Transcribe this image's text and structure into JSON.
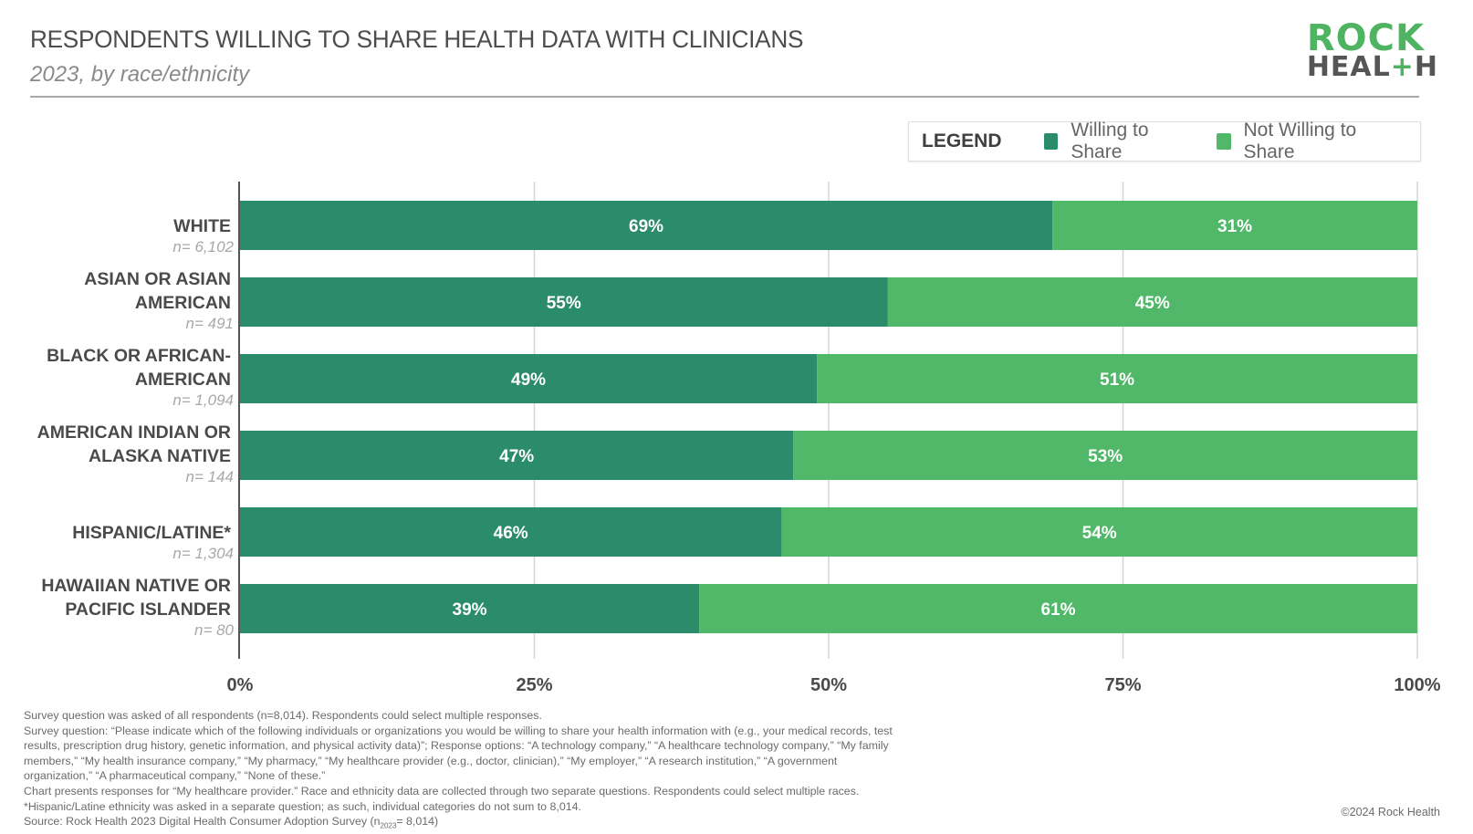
{
  "header": {
    "title": "RESPONDENTS WILLING TO SHARE HEALTH DATA WITH CLINICIANS",
    "subtitle": "2023, by race/ethnicity"
  },
  "logo": {
    "line1": "ROCK",
    "line2_pre": "HEAL",
    "line2_plus": "+",
    "line2_post": "H"
  },
  "legend": {
    "title": "LEGEND",
    "items": [
      {
        "label": "Willing to Share",
        "color": "#2b8c6b"
      },
      {
        "label": "Not Willing to Share",
        "color": "#50b868"
      }
    ]
  },
  "chart_data": {
    "type": "bar",
    "orientation": "horizontal",
    "stacked": true,
    "title": "RESPONDENTS WILLING TO SHARE HEALTH DATA WITH CLINICIANS",
    "subtitle": "2023, by race/ethnicity",
    "xlabel": "",
    "ylabel": "",
    "xlim": [
      0,
      100
    ],
    "x_ticks": [
      "0%",
      "25%",
      "50%",
      "75%",
      "100%"
    ],
    "x_tick_values": [
      0,
      25,
      50,
      75,
      100
    ],
    "grid": true,
    "legend_position": "top-right",
    "categories": [
      {
        "lines": [
          "WHITE"
        ],
        "n": "n= 6,102"
      },
      {
        "lines": [
          "ASIAN OR ASIAN",
          "AMERICAN"
        ],
        "n": "n= 491"
      },
      {
        "lines": [
          "BLACK OR AFRICAN-",
          "AMERICAN"
        ],
        "n": "n= 1,094"
      },
      {
        "lines": [
          "AMERICAN INDIAN OR",
          "ALASKA NATIVE"
        ],
        "n": "n= 144"
      },
      {
        "lines": [
          "HISPANIC/LATINE*"
        ],
        "n": "n= 1,304"
      },
      {
        "lines": [
          "HAWAIIAN NATIVE OR",
          "PACIFIC ISLANDER"
        ],
        "n": "n= 80"
      }
    ],
    "series": [
      {
        "name": "Willing to Share",
        "color": "#2b8c6b",
        "values": [
          69,
          55,
          49,
          47,
          46,
          39
        ],
        "labels": [
          "69%",
          "55%",
          "49%",
          "47%",
          "46%",
          "39%"
        ]
      },
      {
        "name": "Not Willing to Share",
        "color": "#50b868",
        "values": [
          31,
          45,
          51,
          53,
          54,
          61
        ],
        "labels": [
          "31%",
          "45%",
          "51%",
          "53%",
          "54%",
          "61%"
        ]
      }
    ]
  },
  "footnote": {
    "lines": [
      "Survey question was asked of all respondents (n=8,014). Respondents could select multiple responses.",
      "Survey question: “Please indicate which of the following individuals or organizations you would be willing to share your health information with (e.g., your medical records, test",
      "results, prescription drug history, genetic information, and physical activity data)”; Response options: “A technology company,” “A healthcare technology company,” “My family",
      "members,” “My health insurance company,” “My pharmacy,” “My healthcare provider (e.g., doctor, clinician),” “My employer,” “A research institution,” “A government",
      "organization,” “A pharmaceutical company,” “None of these.”",
      "Chart presents responses for “My healthcare provider.” Race and ethnicity data are collected through two separate questions. Respondents could select multiple races.",
      "*Hispanic/Latine ethnicity was asked in a separate question; as such, individual categories do not sum to 8,014."
    ],
    "source_pre": "Source: Rock Health 2023 Digital Health Consumer Adoption Survey (n",
    "source_sub": "2023",
    "source_post": "= 8,014)"
  },
  "copyright": "©2024 Rock Health"
}
